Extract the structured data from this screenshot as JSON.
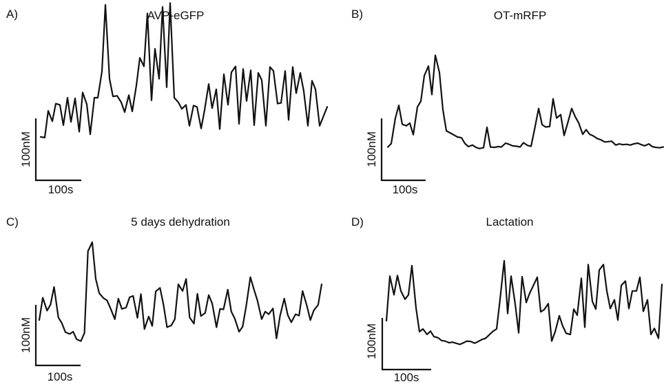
{
  "chart_data": [
    {
      "type": "line",
      "panel_label": "A)",
      "title": "AVP-eGFP",
      "scale_y": "100nM",
      "scale_x": "100s",
      "x": [
        0,
        6,
        11,
        17,
        22,
        28,
        33,
        39,
        44,
        50,
        56,
        61,
        67,
        72,
        78,
        83,
        89,
        94,
        100,
        105,
        111,
        117,
        122,
        128,
        133,
        139,
        144,
        150,
        155,
        161,
        166,
        172,
        177,
        183,
        188,
        194,
        200,
        205,
        211,
        216,
        222,
        227,
        233,
        238,
        244,
        249,
        255,
        260,
        266,
        272,
        277,
        283,
        288,
        294,
        299,
        305,
        310,
        316,
        321,
        327,
        333,
        338,
        344,
        349,
        355,
        360,
        366,
        371,
        377,
        382,
        388,
        394,
        399,
        405,
        410,
        416
      ],
      "y": [
        40,
        39,
        80,
        64,
        91,
        89,
        58,
        100,
        63,
        99,
        48,
        108,
        90,
        44,
        100,
        100,
        140,
        242,
        129,
        102,
        103,
        93,
        78,
        104,
        79,
        119,
        161,
        148,
        229,
        96,
        175,
        129,
        239,
        116,
        245,
        100,
        93,
        83,
        89,
        57,
        88,
        86,
        53,
        81,
        121,
        84,
        113,
        52,
        136,
        89,
        139,
        148,
        60,
        144,
        95,
        142,
        58,
        138,
        127,
        57,
        147,
        141,
        91,
        92,
        141,
        66,
        147,
        107,
        138,
        110,
        57,
        126,
        113,
        57,
        70,
        86
      ]
    },
    {
      "type": "line",
      "panel_label": "B)",
      "title": "OT-mRFP",
      "scale_y": "100nM",
      "scale_x": "100s",
      "x": [
        0,
        5,
        11,
        16,
        21,
        27,
        32,
        37,
        43,
        48,
        53,
        59,
        64,
        69,
        75,
        80,
        85,
        91,
        96,
        101,
        107,
        112,
        117,
        123,
        128,
        133,
        139,
        144,
        149,
        155,
        160,
        165,
        171,
        176,
        181,
        187,
        192,
        197,
        203,
        208,
        213,
        219,
        224,
        229,
        235,
        240,
        245,
        251,
        256,
        261,
        267,
        272,
        277,
        283,
        288,
        293,
        299,
        304,
        309,
        315,
        320,
        325,
        331,
        336,
        341,
        347,
        352,
        357,
        363,
        368,
        373,
        379,
        384,
        389,
        395,
        400
      ],
      "y": [
        40,
        49,
        115,
        148,
        99,
        95,
        102,
        72,
        144,
        159,
        225,
        250,
        176,
        278,
        233,
        137,
        82,
        76,
        71,
        66,
        64,
        49,
        41,
        45,
        39,
        36,
        38,
        91,
        40,
        39,
        41,
        40,
        50,
        47,
        43,
        42,
        40,
        51,
        44,
        42,
        85,
        140,
        98,
        92,
        93,
        165,
        115,
        124,
        70,
        101,
        140,
        119,
        103,
        73,
        85,
        73,
        68,
        62,
        59,
        53,
        54,
        55,
        45,
        48,
        46,
        47,
        45,
        48,
        50,
        46,
        43,
        48,
        41,
        39,
        38,
        40
      ]
    },
    {
      "type": "line",
      "panel_label": "C)",
      "title": "5 days dehydration",
      "scale_y": "100nM",
      "scale_x": "100s",
      "x": [
        0,
        5,
        11,
        16,
        21,
        27,
        32,
        37,
        43,
        48,
        53,
        59,
        64,
        69,
        75,
        80,
        85,
        91,
        96,
        101,
        107,
        112,
        117,
        123,
        128,
        133,
        139,
        144,
        149,
        155,
        160,
        165,
        171,
        176,
        181,
        187,
        192,
        197,
        203,
        208,
        213,
        219,
        224,
        229,
        235,
        240,
        245,
        251,
        256,
        261,
        267,
        272,
        277,
        283,
        288,
        293,
        299,
        304,
        309,
        315,
        320,
        325,
        331,
        336,
        341,
        347,
        352,
        357,
        363,
        368,
        373,
        379,
        384,
        389,
        395,
        400
      ],
      "y": [
        86,
        136,
        107,
        121,
        160,
        92,
        79,
        59,
        55,
        60,
        43,
        39,
        57,
        240,
        260,
        178,
        146,
        135,
        130,
        112,
        88,
        134,
        111,
        114,
        137,
        140,
        91,
        144,
        66,
        94,
        73,
        150,
        158,
        120,
        70,
        74,
        88,
        166,
        151,
        178,
        92,
        78,
        145,
        95,
        102,
        142,
        123,
        70,
        111,
        110,
        154,
        105,
        89,
        60,
        71,
        116,
        182,
        155,
        130,
        88,
        105,
        99,
        112,
        45,
        95,
        134,
        97,
        81,
        99,
        96,
        151,
        118,
        86,
        108,
        120,
        166
      ]
    },
    {
      "type": "line",
      "panel_label": "D)",
      "title": "Lactation",
      "scale_y": "100nM",
      "scale_x": "100s",
      "x": [
        0,
        5,
        11,
        16,
        21,
        27,
        32,
        37,
        43,
        48,
        53,
        59,
        64,
        69,
        75,
        80,
        85,
        91,
        96,
        101,
        107,
        112,
        117,
        123,
        128,
        133,
        139,
        144,
        149,
        155,
        160,
        165,
        171,
        176,
        181,
        187,
        192,
        197,
        203,
        208,
        213,
        219,
        224,
        229,
        235,
        240,
        245,
        251,
        256,
        261,
        267,
        272,
        277,
        283,
        288,
        293,
        299,
        304,
        309,
        315,
        320,
        325,
        331,
        336,
        341,
        347,
        352,
        357,
        363,
        368,
        373,
        379,
        384,
        389,
        395,
        400
      ],
      "y": [
        70,
        151,
        117,
        152,
        124,
        109,
        117,
        170,
        93,
        50,
        55,
        45,
        51,
        41,
        39,
        34,
        33,
        30,
        31,
        29,
        27,
        30,
        33,
        32,
        29,
        32,
        36,
        38,
        44,
        51,
        55,
        109,
        179,
        83,
        151,
        100,
        48,
        150,
        103,
        120,
        133,
        149,
        86,
        90,
        101,
        33,
        50,
        79,
        60,
        47,
        45,
        91,
        80,
        147,
        58,
        172,
        105,
        91,
        162,
        172,
        124,
        92,
        108,
        71,
        134,
        142,
        92,
        124,
        124,
        149,
        87,
        108,
        45,
        56,
        38,
        136
      ]
    }
  ]
}
